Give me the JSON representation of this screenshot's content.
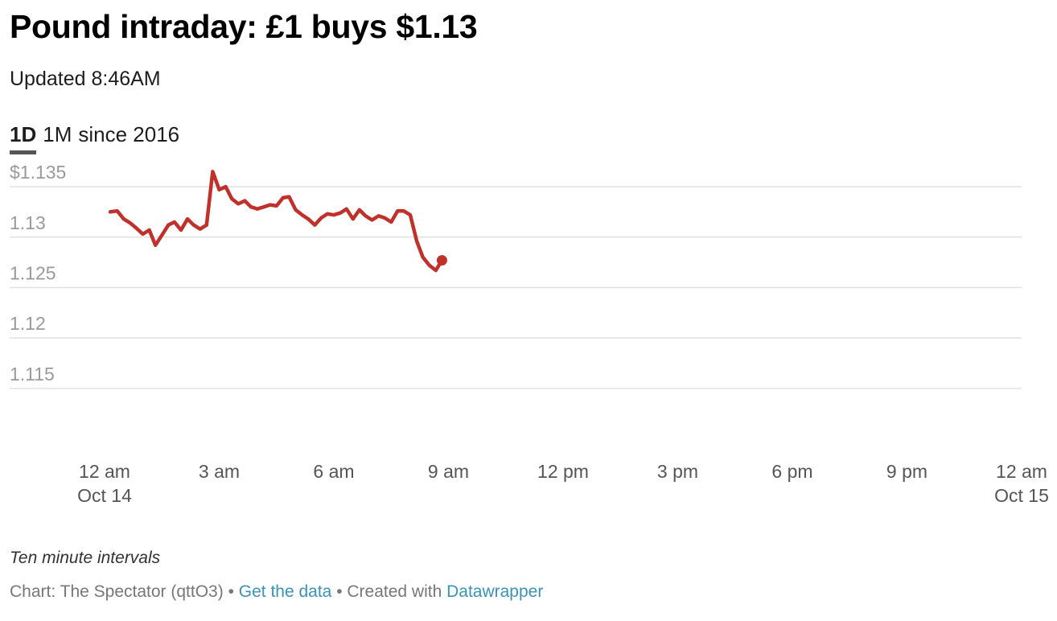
{
  "header": {
    "title": "Pound intraday: £1 buys $1.13",
    "updated": "Updated 8:46AM"
  },
  "tabs": [
    {
      "label": "1D",
      "active": true
    },
    {
      "label": "1M",
      "active": false
    },
    {
      "label": "since 2016",
      "active": false
    }
  ],
  "chart_data": {
    "type": "line",
    "title": "Pound intraday: £1 buys $1.13",
    "xlabel": "",
    "ylabel": "",
    "x_unit": "hours since 12 am Oct 14",
    "xlim": [
      0,
      24
    ],
    "ylim": [
      1.111,
      1.137
    ],
    "y_ticks": [
      {
        "value": 1.135,
        "label": "$1.135"
      },
      {
        "value": 1.13,
        "label": "1.13"
      },
      {
        "value": 1.125,
        "label": "1.125"
      },
      {
        "value": 1.12,
        "label": "1.12"
      },
      {
        "value": 1.115,
        "label": "1.115"
      }
    ],
    "x_ticks": [
      {
        "value": 0,
        "label": "12 am",
        "sub": "Oct 14"
      },
      {
        "value": 3,
        "label": "3 am",
        "sub": ""
      },
      {
        "value": 6,
        "label": "6 am",
        "sub": ""
      },
      {
        "value": 9,
        "label": "9 am",
        "sub": ""
      },
      {
        "value": 12,
        "label": "12 pm",
        "sub": ""
      },
      {
        "value": 15,
        "label": "3 pm",
        "sub": ""
      },
      {
        "value": 18,
        "label": "6 pm",
        "sub": ""
      },
      {
        "value": 21,
        "label": "9 pm",
        "sub": ""
      },
      {
        "value": 24,
        "label": "12 am",
        "sub": "Oct 15"
      }
    ],
    "grid": true,
    "line_color": "#c0312b",
    "series": [
      {
        "name": "",
        "x": [
          0.15,
          0.33,
          0.5,
          0.67,
          0.83,
          1.0,
          1.17,
          1.33,
          1.5,
          1.67,
          1.83,
          2.0,
          2.17,
          2.33,
          2.5,
          2.67,
          2.83,
          3.0,
          3.17,
          3.33,
          3.5,
          3.67,
          3.83,
          4.0,
          4.17,
          4.33,
          4.5,
          4.67,
          4.83,
          5.0,
          5.17,
          5.33,
          5.5,
          5.67,
          5.83,
          6.0,
          6.17,
          6.33,
          6.5,
          6.67,
          6.83,
          7.0,
          7.17,
          7.33,
          7.5,
          7.67,
          7.83,
          8.0,
          8.17,
          8.33,
          8.5,
          8.67,
          8.83
        ],
        "y": [
          1.1325,
          1.1326,
          1.1318,
          1.1314,
          1.1309,
          1.1303,
          1.1307,
          1.1292,
          1.1302,
          1.1312,
          1.1315,
          1.1307,
          1.1318,
          1.1312,
          1.1308,
          1.1312,
          1.1365,
          1.1347,
          1.135,
          1.1338,
          1.1333,
          1.1336,
          1.133,
          1.1328,
          1.133,
          1.1332,
          1.1331,
          1.1339,
          1.134,
          1.1327,
          1.1322,
          1.1318,
          1.1312,
          1.1319,
          1.1323,
          1.1322,
          1.1324,
          1.1328,
          1.1318,
          1.1327,
          1.1321,
          1.1317,
          1.1321,
          1.1319,
          1.1315,
          1.1326,
          1.1326,
          1.1322,
          1.1296,
          1.128,
          1.1272,
          1.1267,
          1.1277
        ]
      }
    ]
  },
  "notes": {
    "intervals": "Ten minute intervals"
  },
  "footer": {
    "prefix": "Chart: The Spectator (qttO3) • ",
    "get_data": "Get the data",
    "middle": " • Created with ",
    "datawrapper": "Datawrapper"
  }
}
